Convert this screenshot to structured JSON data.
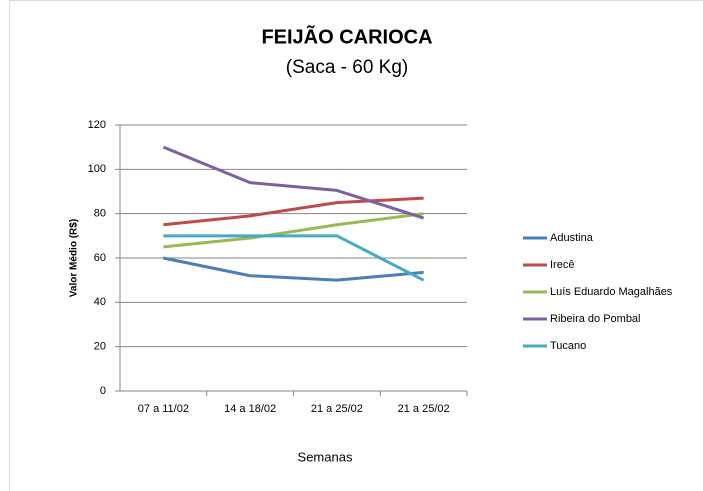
{
  "chart_data": {
    "type": "line",
    "title": "FEIJÃO CARIOCA",
    "subtitle": "(Saca - 60 Kg)",
    "x_label": "Semanas",
    "y_label": "Valor Médio (R$)",
    "categories": [
      "07 a 11/02",
      "14 a 18/02",
      "21 a 25/02",
      "21 a 25/02"
    ],
    "series": [
      {
        "name": "Adustina",
        "color": "#4a7ebb",
        "values": [
          60,
          52,
          50,
          53.5
        ]
      },
      {
        "name": "Irecê",
        "color": "#be4b48",
        "values": [
          75,
          79,
          85,
          87
        ]
      },
      {
        "name": "Luís Eduardo Magalhães",
        "color": "#98b954",
        "values": [
          65,
          69,
          75,
          80
        ]
      },
      {
        "name": "Ribeira do Pombal",
        "color": "#7d60a0",
        "values": [
          110,
          94,
          90.5,
          78
        ]
      },
      {
        "name": "Tucano",
        "color": "#46aac5",
        "values": [
          70,
          70,
          70,
          50
        ]
      }
    ],
    "ylim": [
      0,
      120
    ],
    "yticks": [
      0,
      20,
      40,
      60,
      80,
      100,
      120
    ],
    "grid": true,
    "legend": "right"
  }
}
